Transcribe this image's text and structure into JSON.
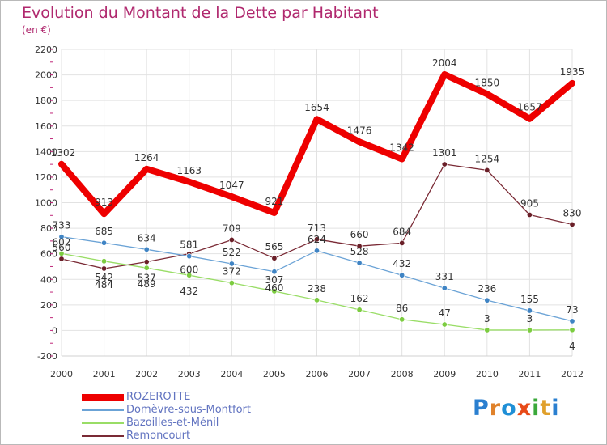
{
  "title": "Evolution du Montant de la Dette par Habitant",
  "subtitle": "(en €)",
  "logo": {
    "text": "Proxiti",
    "letters": [
      "P",
      "r",
      "o",
      "x",
      "i",
      "t",
      "i"
    ],
    "colors": [
      "#2a7fd0",
      "#e0822b",
      "#1f8fd6",
      "#e84a18",
      "#3aa83a",
      "#e0a02b",
      "#2a7fd0"
    ]
  },
  "chart_data": {
    "type": "line",
    "title": "Evolution du Montant de la Dette par Habitant",
    "subtitle": "(en €)",
    "xlabel": "",
    "ylabel": "",
    "ylim": [
      -200,
      2200
    ],
    "yticks": [
      -200,
      0,
      200,
      400,
      600,
      800,
      1000,
      1200,
      1400,
      1600,
      1800,
      2000,
      2200
    ],
    "x": [
      2000,
      2001,
      2002,
      2003,
      2004,
      2005,
      2006,
      2007,
      2008,
      2009,
      2010,
      2011,
      2012
    ],
    "grid": true,
    "legend_position": "bottom-left",
    "series": [
      {
        "name": "ROZEROTTE",
        "color": "#ee0000",
        "width": 8,
        "marker": false,
        "values": [
          1302,
          913,
          1264,
          1163,
          1047,
          921,
          1654,
          1476,
          1342,
          2004,
          1850,
          1657,
          1935
        ],
        "labels": [
          "1302",
          "913",
          "1264",
          "1163",
          "1047",
          "921",
          "1654",
          "1476",
          "1342",
          "2004",
          "1850",
          "1657",
          "1935"
        ]
      },
      {
        "name": "Domèvre-sous-Montfort",
        "color": "#6ba3d6",
        "marker_color": "#3f84c4",
        "width": 1.3,
        "marker": true,
        "values": [
          733,
          685,
          634,
          581,
          522,
          460,
          624,
          528,
          432,
          331,
          236,
          155,
          73
        ],
        "labels": [
          "733",
          "685",
          "634",
          "581",
          "522",
          "460",
          "624",
          "528",
          "432",
          "331",
          "236",
          "155",
          "73"
        ]
      },
      {
        "name": "Bazoilles-et-Ménil",
        "color": "#99dd66",
        "marker_color": "#7ccc40",
        "width": 1.3,
        "marker": true,
        "values": [
          602,
          542,
          489,
          432,
          372,
          307,
          238,
          162,
          86,
          47,
          3,
          3,
          4
        ],
        "labels": [
          "602",
          "542",
          "489",
          "432",
          "372",
          "307",
          "238",
          "162",
          "86",
          "47",
          "3",
          "3",
          "4"
        ]
      },
      {
        "name": "Remoncourt",
        "color": "#7a2a35",
        "marker_color": "#6a1f28",
        "width": 1.3,
        "marker": true,
        "values": [
          560,
          484,
          537,
          600,
          709,
          565,
          713,
          660,
          684,
          1301,
          1254,
          905,
          830
        ],
        "labels": [
          "560",
          "484",
          "537",
          "600",
          "709",
          "565",
          "713",
          "660",
          "684",
          "1301",
          "1254",
          "905",
          "830"
        ]
      }
    ]
  }
}
